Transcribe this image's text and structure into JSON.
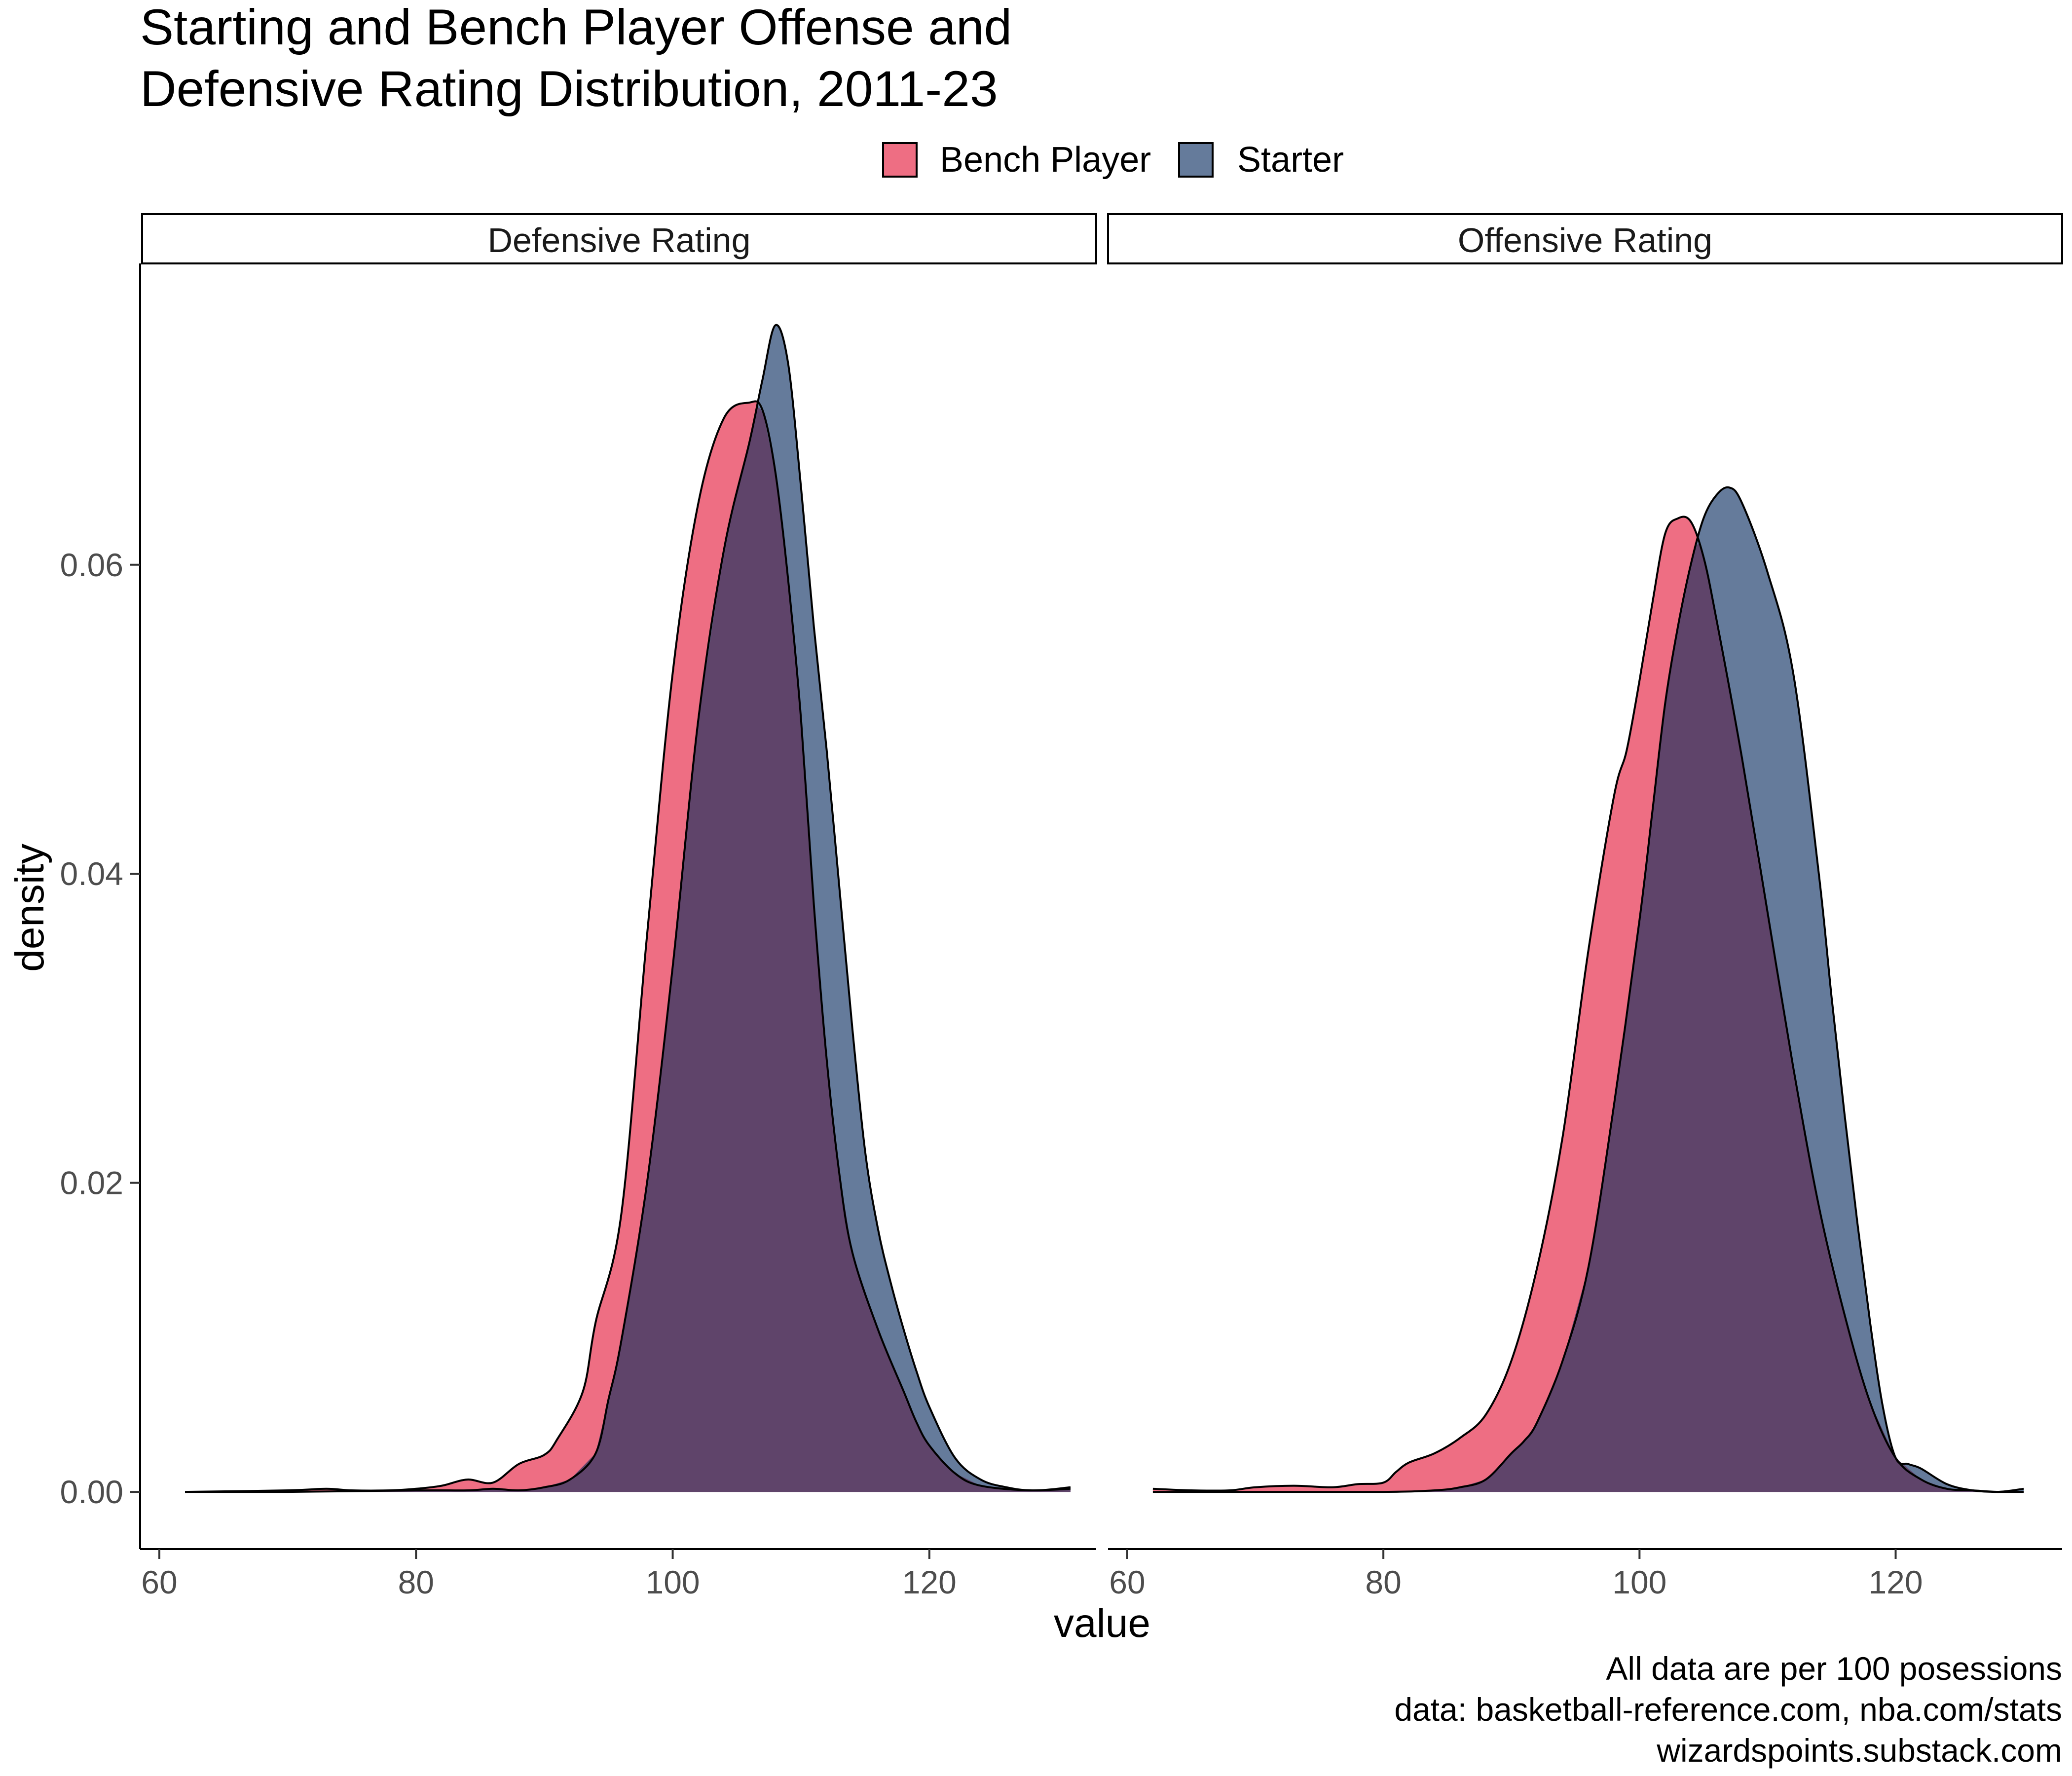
{
  "chart_data": {
    "type": "area",
    "title_lines": [
      "Starting and Bench Player Offense and",
      "Defensive Rating Distribution, 2011-23"
    ],
    "xlabel": "value",
    "ylabel": "density",
    "xlim": [
      58.5,
      133
    ],
    "ylim": [
      -0.0037,
      0.0795
    ],
    "x_ticks": [
      "60",
      "80",
      "100",
      "120"
    ],
    "y_ticks": [
      "0.00",
      "0.02",
      "0.04",
      "0.06"
    ],
    "legend": {
      "placement": "top",
      "entries": [
        {
          "label": "Bench Player",
          "color": "#EE6E83"
        },
        {
          "label": "Starter",
          "color": "#657B9B"
        }
      ]
    },
    "overlap_color": "#5F446A",
    "caption_lines": [
      "All data are per 100 posessions",
      "data: basketball-reference.com, nba.com/stats",
      "wizardspoints.substack.com"
    ],
    "facets": [
      {
        "label": "Defensive Rating",
        "series": [
          {
            "name": "Bench Player",
            "x": [
              62,
              70,
              73,
              75,
              78,
              80,
              82,
              84,
              86,
              88,
              90,
              91,
              93,
              94,
              96,
              98,
              100,
              102,
              104,
              106,
              107,
              108,
              109,
              110,
              111,
              112,
              113,
              114,
              116,
              118,
              119,
              120,
              122,
              124,
              128,
              131
            ],
            "y": [
              0,
              0.0001,
              0.0002,
              0.0001,
              0.0001,
              0.0002,
              0.0004,
              0.0008,
              0.0006,
              0.0018,
              0.0024,
              0.0034,
              0.0065,
              0.011,
              0.018,
              0.036,
              0.053,
              0.064,
              0.0695,
              0.0705,
              0.07,
              0.066,
              0.059,
              0.05,
              0.038,
              0.028,
              0.0205,
              0.0155,
              0.0105,
              0.0065,
              0.0045,
              0.003,
              0.0012,
              0.0004,
              0.0001,
              0.0003
            ]
          },
          {
            "name": "Starter",
            "x": [
              62,
              70,
              80,
              84,
              86,
              88,
              90,
              92,
              94,
              95,
              96,
              98,
              100,
              102,
              104,
              106,
              107,
              108,
              109,
              110,
              111,
              112,
              113,
              114,
              115,
              116,
              117,
              118,
              119,
              120,
              122,
              124,
              126,
              128,
              131
            ],
            "y": [
              0,
              0,
              0.0001,
              0.0001,
              0.0002,
              0.0001,
              0.0003,
              0.0008,
              0.0025,
              0.006,
              0.0098,
              0.02,
              0.034,
              0.05,
              0.061,
              0.068,
              0.072,
              0.0755,
              0.073,
              0.065,
              0.056,
              0.048,
              0.039,
              0.03,
              0.022,
              0.017,
              0.0135,
              0.0105,
              0.0078,
              0.0055,
              0.0022,
              0.0008,
              0.0003,
              0.0001,
              0.0002
            ]
          }
        ]
      },
      {
        "label": "Offensive Rating",
        "series": [
          {
            "name": "Bench Player",
            "x": [
              62,
              65,
              68,
              70,
              73,
              76,
              78,
              80,
              81,
              82,
              84,
              86,
              88,
              90,
              92,
              94,
              96,
              98,
              99,
              100,
              101,
              102,
              103,
              104,
              105,
              106,
              108,
              110,
              112,
              114,
              116,
              118,
              120,
              122,
              124,
              126,
              128,
              130
            ],
            "y": [
              0.0002,
              0.0001,
              0.0001,
              0.0003,
              0.0004,
              0.0003,
              0.0005,
              0.0006,
              0.0013,
              0.0019,
              0.0025,
              0.0035,
              0.005,
              0.0085,
              0.0145,
              0.023,
              0.035,
              0.045,
              0.048,
              0.0525,
              0.0575,
              0.062,
              0.063,
              0.0628,
              0.0605,
              0.0565,
              0.0475,
              0.0375,
              0.0275,
              0.0185,
              0.0115,
              0.0058,
              0.0022,
              0.0008,
              0.0002,
              0.0001,
              0,
              0
            ]
          },
          {
            "name": "Starter",
            "x": [
              62,
              70,
              80,
              84,
              86,
              88,
              90,
              91,
              92,
              94,
              96,
              98,
              100,
              101,
              102,
              103,
              104,
              105,
              106,
              107,
              108,
              110,
              112,
              114,
              115,
              116,
              117,
              118,
              119,
              120,
              121,
              122,
              124,
              126,
              128,
              130
            ],
            "y": [
              0,
              0,
              0,
              0.0001,
              0.0003,
              0.0008,
              0.0025,
              0.0033,
              0.0045,
              0.0085,
              0.0145,
              0.025,
              0.037,
              0.044,
              0.051,
              0.056,
              0.06,
              0.063,
              0.0645,
              0.065,
              0.064,
              0.0595,
              0.053,
              0.04,
              0.032,
              0.0245,
              0.0175,
              0.011,
              0.0055,
              0.0022,
              0.0018,
              0.0015,
              0.0005,
              0.0001,
              0,
              0.0002
            ]
          }
        ]
      }
    ]
  }
}
